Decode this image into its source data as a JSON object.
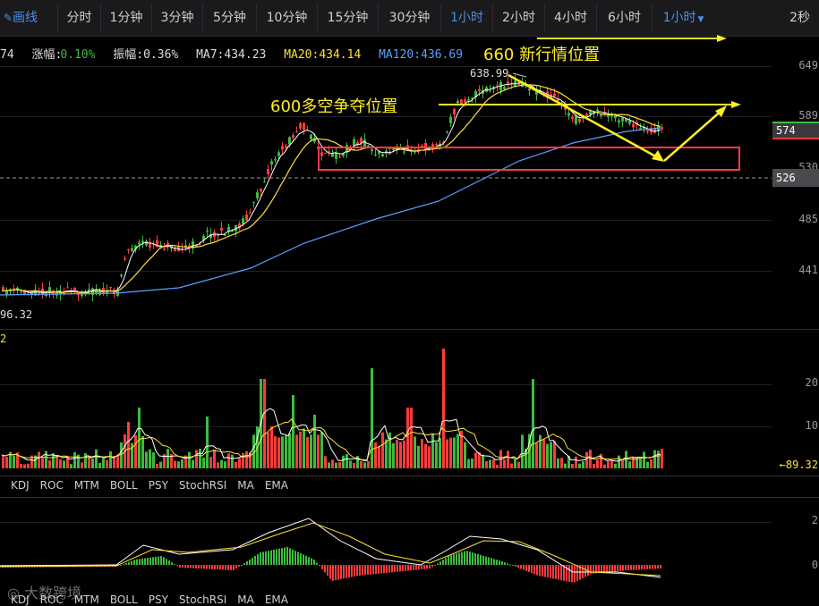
{
  "toolbar": {
    "draw_label": "画线",
    "intervals": [
      "分时",
      "1分钟",
      "3分钟",
      "5分钟",
      "10分钟",
      "15分钟",
      "30分钟",
      "1小时",
      "2小时",
      "4小时",
      "6小时"
    ],
    "active_interval": "1小时",
    "selected_interval": "1小时",
    "refresh": "2秒"
  },
  "info": {
    "price_partial": "74",
    "change_label": "涨幅:",
    "change_value": "0.10%",
    "amplitude": "振幅:0.36%",
    "ma7": "MA7:434.23",
    "ma20": "MA20:434.14",
    "ma120": "MA120:436.69"
  },
  "colors": {
    "up": "#ff3b3b",
    "down": "#3dbb3d",
    "ma7": "#ffffff",
    "ma20": "#ffe135",
    "ma120": "#5aa0ff",
    "accent": "#4a8fe8",
    "annotation": "#ffee22",
    "box": "#ff3b4a"
  },
  "price_axis": [
    "649",
    "589",
    "530",
    "485",
    "441"
  ],
  "price_tags": {
    "current": "574",
    "dashed": "526"
  },
  "annotations": {
    "level_660": "660 新行情位置",
    "level_600": "600多空争夺位置",
    "high": "638.99",
    "low": "96.32"
  },
  "volume_axis": [
    "20",
    "10"
  ],
  "volume_value": "←89.32",
  "volume_label_partial": "2",
  "tabs": [
    "KDJ",
    "ROC",
    "MTM",
    "BOLL",
    "PSY",
    "StochRSI",
    "MA",
    "EMA"
  ],
  "macd_axis": [
    "2",
    "0"
  ],
  "watermark": "大数跨境"
}
